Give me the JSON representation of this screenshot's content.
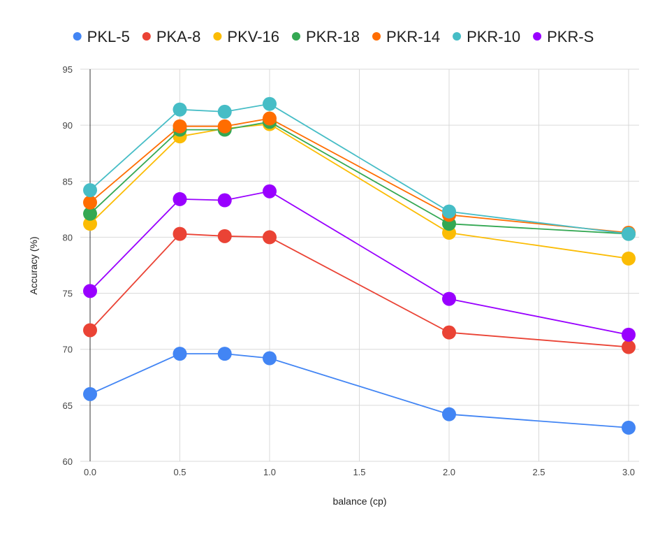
{
  "chart_data": {
    "type": "line",
    "title": "",
    "xlabel": "balance (cp)",
    "ylabel": "Accuracy (%)",
    "xlim": [
      0,
      3.0
    ],
    "ylim": [
      60,
      95
    ],
    "x_ticks": [
      "0.0",
      "0.5",
      "1.0",
      "1.5",
      "2.0",
      "2.5",
      "3.0"
    ],
    "y_ticks": [
      "60",
      "65",
      "70",
      "75",
      "80",
      "85",
      "90",
      "95"
    ],
    "grid": true,
    "legend_position": "top",
    "x": [
      0.0,
      0.5,
      0.75,
      1.0,
      2.0,
      3.0
    ],
    "series": [
      {
        "name": "PKL-5",
        "color": "#4285f4",
        "values": [
          66.0,
          69.6,
          69.6,
          69.2,
          64.2,
          63.0
        ]
      },
      {
        "name": "PKA-8",
        "color": "#ea4335",
        "values": [
          71.7,
          80.3,
          80.1,
          80.0,
          71.5,
          70.2
        ]
      },
      {
        "name": "PKV-16",
        "color": "#fbbc04",
        "values": [
          81.2,
          89.0,
          89.7,
          90.1,
          80.4,
          78.1
        ]
      },
      {
        "name": "PKR-18",
        "color": "#34a853",
        "values": [
          82.1,
          89.6,
          89.6,
          90.3,
          81.2,
          80.3
        ]
      },
      {
        "name": "PKR-14",
        "color": "#ff6d01",
        "values": [
          83.1,
          89.9,
          89.9,
          90.6,
          82.0,
          80.4
        ]
      },
      {
        "name": "PKR-10",
        "color": "#46bdc6",
        "values": [
          84.2,
          91.4,
          91.2,
          91.9,
          82.3,
          80.3
        ]
      },
      {
        "name": "PKR-S",
        "color": "#9900ff",
        "values": [
          75.2,
          83.4,
          83.3,
          84.1,
          74.5,
          71.3
        ]
      }
    ]
  }
}
